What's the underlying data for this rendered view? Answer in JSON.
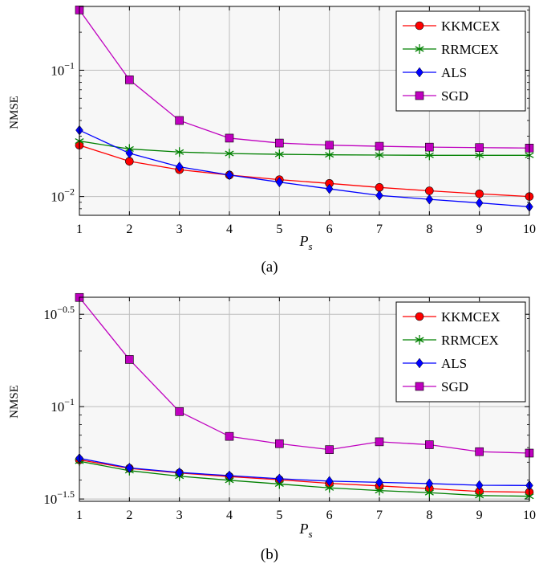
{
  "chart_data": [
    {
      "id": "a",
      "type": "line",
      "caption": "(a)",
      "xlabel": "P_s",
      "ylabel": "NMSE",
      "yscale": "log",
      "xlim": [
        1,
        10
      ],
      "ylim": [
        0.0071,
        0.32
      ],
      "grid": true,
      "legend_position": "top-right",
      "x": [
        1,
        2,
        3,
        4,
        5,
        6,
        7,
        8,
        9,
        10
      ],
      "xticks": [
        "1",
        "2",
        "3",
        "4",
        "5",
        "6",
        "7",
        "8",
        "9",
        "10"
      ],
      "yticks": [
        {
          "value": 0.1,
          "base": "10",
          "exp": "−1"
        },
        {
          "value": 0.01,
          "base": "10",
          "exp": "−2"
        }
      ],
      "series": [
        {
          "name": "KKMCEX",
          "color": "#ff0000",
          "marker": "circle",
          "values": [
            0.0255,
            0.019,
            0.0163,
            0.0148,
            0.0136,
            0.0127,
            0.0118,
            0.0111,
            0.0105,
            0.01
          ]
        },
        {
          "name": "RRMCEX",
          "color": "#008000",
          "marker": "star",
          "values": [
            0.0275,
            0.0238,
            0.0225,
            0.0219,
            0.0216,
            0.0214,
            0.0213,
            0.0212,
            0.0212,
            0.0212
          ]
        },
        {
          "name": "ALS",
          "color": "#0000ff",
          "marker": "diamond",
          "values": [
            0.0335,
            0.022,
            0.0172,
            0.0148,
            0.013,
            0.0115,
            0.0102,
            0.0095,
            0.0089,
            0.0083
          ]
        },
        {
          "name": "SGD",
          "color": "#bf00bf",
          "marker": "square",
          "values": [
            0.3,
            0.084,
            0.04,
            0.029,
            0.0265,
            0.0255,
            0.025,
            0.0246,
            0.0244,
            0.0242
          ]
        }
      ]
    },
    {
      "id": "b",
      "type": "line",
      "caption": "(b)",
      "xlabel": "P_s",
      "ylabel": "NMSE",
      "yscale": "log",
      "xlim": [
        1,
        10
      ],
      "ylim": [
        0.0307,
        0.391
      ],
      "grid": true,
      "legend_position": "top-right",
      "x": [
        1,
        2,
        3,
        4,
        5,
        6,
        7,
        8,
        9,
        10
      ],
      "xticks": [
        "1",
        "2",
        "3",
        "4",
        "5",
        "6",
        "7",
        "8",
        "9",
        "10"
      ],
      "yticks": [
        {
          "value": 0.3162,
          "base": "10",
          "exp": "−0.5"
        },
        {
          "value": 0.1,
          "base": "10",
          "exp": "−1"
        },
        {
          "value": 0.0316,
          "base": "10",
          "exp": "−1.5"
        }
      ],
      "series": [
        {
          "name": "KKMCEX",
          "color": "#ff0000",
          "marker": "circle",
          "values": [
            0.0515,
            0.0463,
            0.0437,
            0.0418,
            0.0402,
            0.0384,
            0.0372,
            0.036,
            0.0347,
            0.0344
          ]
        },
        {
          "name": "RRMCEX",
          "color": "#008000",
          "marker": "star",
          "values": [
            0.0506,
            0.045,
            0.042,
            0.0399,
            0.0381,
            0.0363,
            0.0351,
            0.0342,
            0.033,
            0.0327
          ]
        },
        {
          "name": "ALS",
          "color": "#0000ff",
          "marker": "diamond",
          "values": [
            0.0525,
            0.0466,
            0.044,
            0.0423,
            0.0407,
            0.0395,
            0.0389,
            0.0383,
            0.0375,
            0.0374
          ]
        },
        {
          "name": "SGD",
          "color": "#bf00bf",
          "marker": "square",
          "values": [
            0.39,
            0.18,
            0.094,
            0.069,
            0.063,
            0.0585,
            0.0645,
            0.0622,
            0.057,
            0.056
          ]
        }
      ]
    }
  ]
}
